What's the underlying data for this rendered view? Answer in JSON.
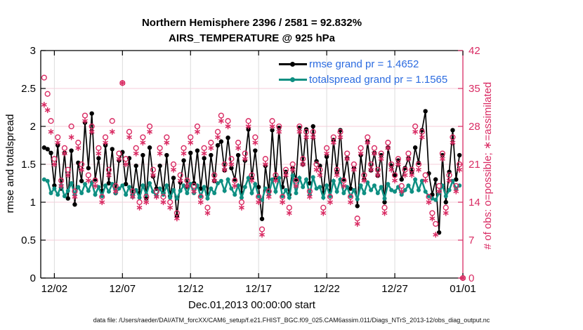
{
  "figure": {
    "title_line1": "Northern Hemisphere 2396 / 2581 = 92.832%",
    "title_line2": "AIRS_TEMPERATURE @ 925 hPa",
    "xlabel": "Dec.01,2013 00:00:00 start",
    "ylabel_left": "rmse and totalspread",
    "ylabel_right": "# of obs: o=possible; ∗=assimilated",
    "caption": "data file: /Users/raeder/DAI/ATM_forcXX/CAM6_setup/f.e21.FHIST_BGC.f09_025.CAM6assim.011/Diags_NTrS_2013-12/obs_diag_output.nc",
    "legend": [
      {
        "label": "rmse grand pr = 1.4652",
        "color": "#000000"
      },
      {
        "label": "totalspread grand pr = 1.1565",
        "color": "#0e8f82"
      }
    ],
    "colors": {
      "pink": "#d92b63",
      "teal": "#0e8f82",
      "black": "#000000",
      "legend_text_blue": "#2b6be0",
      "grid_horizontal": "#f6ccd8",
      "grid_vertical": "#dcdcdc"
    }
  },
  "chart_data": {
    "type": "line",
    "title": "Northern Hemisphere 2396 / 2581 = 92.832% | AIRS_TEMPERATURE @ 925 hPa",
    "x_start": "2013-12-01 00:00:00",
    "x_step_hours": 6,
    "x_range_days": [
      0,
      31
    ],
    "xtick_days": [
      1,
      6,
      11,
      16,
      21,
      26,
      31
    ],
    "xtick_labels": [
      "12/02",
      "12/07",
      "12/12",
      "12/17",
      "12/22",
      "12/27",
      "01/01"
    ],
    "left_axis": {
      "label": "rmse and totalspread",
      "range": [
        0,
        3
      ],
      "tick_values": [
        0,
        0.5,
        1,
        1.5,
        2,
        2.5,
        3
      ],
      "tick_labels": [
        "0",
        "0.5",
        "1",
        "1.5",
        "2",
        "2.5",
        "3"
      ]
    },
    "right_axis": {
      "label": "# of obs: o=possible; ∗=assimilated",
      "range": [
        0,
        42
      ],
      "tick_values": [
        0,
        7,
        14,
        21,
        28,
        35,
        42
      ],
      "tick_labels": [
        "0",
        "7",
        "14",
        "21",
        "28",
        "35",
        "42"
      ]
    },
    "grid": true,
    "legend_position": "top-center",
    "series": [
      {
        "name": "rmse",
        "grand_pr": 1.4652,
        "axis": "left",
        "style": "line-dot",
        "color": "#000000",
        "values": [
          1.72,
          1.7,
          1.65,
          1.22,
          1.75,
          1.18,
          1.65,
          1.05,
          1.68,
          0.97,
          1.52,
          1.28,
          2.05,
          1.45,
          2.17,
          1.3,
          1.58,
          1.15,
          1.75,
          1.25,
          1.7,
          1.12,
          1.55,
          1.66,
          1.24,
          1.58,
          1.1,
          1.48,
          1.12,
          1.62,
          1.05,
          1.72,
          1.34,
          1.18,
          1.48,
          1.12,
          1.62,
          1.08,
          1.32,
          0.82,
          1.26,
          1.55,
          1.2,
          1.65,
          1.25,
          1.68,
          1.18,
          1.58,
          1.1,
          1.62,
          1.28,
          1.75,
          1.8,
          1.42,
          1.85,
          1.45,
          1.3,
          1.62,
          1.12,
          1.55,
          1.96,
          1.32,
          1.68,
          1.2,
          0.78,
          1.48,
          1.14,
          1.95,
          1.32,
          1.98,
          1.2,
          1.4,
          1.1,
          1.45,
          1.3,
          1.98,
          1.5,
          1.96,
          1.25,
          2.0,
          1.54,
          1.48,
          1.12,
          1.6,
          1.15,
          1.82,
          1.4,
          1.95,
          1.3,
          1.58,
          1.18,
          1.45,
          0.95,
          1.62,
          1.3,
          1.8,
          1.42,
          1.65,
          1.35,
          1.62,
          1.0,
          1.72,
          1.48,
          1.35,
          1.55,
          1.3,
          1.45,
          1.58,
          1.4,
          1.72,
          1.52,
          1.95,
          2.2,
          1.38,
          1.1,
          1.3,
          0.6,
          1.62,
          1.0,
          1.4,
          1.95,
          1.3,
          1.62,
          null
        ]
      },
      {
        "name": "totalspread",
        "grand_pr": 1.1565,
        "axis": "left",
        "style": "line-dot",
        "color": "#0e8f82",
        "values": [
          1.3,
          1.28,
          1.12,
          1.18,
          1.1,
          1.22,
          1.08,
          1.15,
          1.25,
          1.1,
          1.2,
          1.12,
          1.24,
          1.15,
          1.26,
          1.1,
          1.2,
          1.08,
          1.22,
          1.14,
          1.24,
          1.12,
          1.18,
          1.22,
          1.1,
          1.2,
          1.07,
          1.16,
          1.06,
          1.22,
          1.1,
          1.25,
          1.14,
          1.08,
          1.18,
          1.1,
          1.22,
          1.06,
          1.16,
          1.05,
          1.15,
          1.22,
          1.12,
          1.24,
          1.12,
          1.22,
          1.08,
          1.2,
          1.05,
          1.18,
          1.12,
          1.25,
          1.28,
          1.15,
          1.3,
          1.18,
          1.1,
          1.22,
          1.06,
          1.2,
          1.32,
          1.12,
          1.24,
          1.08,
          1.03,
          1.18,
          1.1,
          1.3,
          1.14,
          1.32,
          1.08,
          1.16,
          1.06,
          1.35,
          1.12,
          1.32,
          1.2,
          1.3,
          1.1,
          1.33,
          1.18,
          1.2,
          1.06,
          1.22,
          1.08,
          1.28,
          1.14,
          1.3,
          1.12,
          1.2,
          1.08,
          1.16,
          1.04,
          1.22,
          1.12,
          1.26,
          1.16,
          1.22,
          1.12,
          1.2,
          1.05,
          1.24,
          1.16,
          1.14,
          1.2,
          1.1,
          1.16,
          1.22,
          1.14,
          1.3,
          1.16,
          1.28,
          1.14,
          1.08,
          1.05,
          1.03,
          1.12,
          1.22,
          1.08,
          1.16,
          1.28,
          1.18,
          1.22,
          null
        ]
      },
      {
        "name": "possible",
        "axis": "right",
        "style": "scatter",
        "marker": "circle",
        "color": "#d92b63",
        "values": [
          37,
          34,
          29,
          22,
          26,
          18,
          24,
          20,
          28,
          16,
          25,
          21,
          30,
          19,
          28,
          18,
          24,
          15,
          26,
          20,
          29,
          17,
          23,
          36,
          22,
          27,
          16,
          24,
          14,
          26,
          15,
          28,
          20,
          16,
          24,
          15,
          26,
          14,
          21,
          12,
          19,
          24,
          18,
          26,
          17,
          28,
          15,
          24,
          13,
          25,
          19,
          27,
          30,
          21,
          29,
          22,
          18,
          25,
          14,
          23,
          29,
          19,
          26,
          15,
          9,
          22,
          16,
          29,
          19,
          28,
          15,
          20,
          13,
          21,
          18,
          28,
          22,
          27,
          16,
          27,
          21,
          20,
          13,
          24,
          15,
          26,
          20,
          27,
          18,
          23,
          15,
          21,
          11,
          24,
          19,
          26,
          21,
          24,
          20,
          23,
          13,
          25,
          21,
          19,
          22,
          17,
          20,
          23,
          20,
          28,
          21,
          27,
          19,
          15,
          12,
          10,
          17,
          23,
          13,
          19,
          26,
          17,
          21,
          0
        ]
      },
      {
        "name": "assimilated",
        "axis": "right",
        "style": "scatter",
        "marker": "asterisk",
        "color": "#d92b63",
        "values": [
          32,
          31,
          27,
          21,
          25,
          17,
          23,
          19,
          26,
          15,
          24,
          20,
          29,
          18,
          27,
          17,
          23,
          14,
          25,
          19,
          27,
          16,
          22,
          36,
          21,
          26,
          15,
          23,
          13,
          25,
          14,
          27,
          19,
          15,
          23,
          14,
          25,
          13,
          20,
          11,
          18,
          23,
          17,
          25,
          16,
          27,
          14,
          23,
          12,
          24,
          18,
          26,
          29,
          20,
          28,
          21,
          17,
          24,
          13,
          22,
          28,
          18,
          25,
          14,
          8,
          21,
          15,
          28,
          18,
          27,
          14,
          19,
          12,
          20,
          17,
          27,
          21,
          26,
          15,
          26,
          20,
          19,
          12,
          23,
          14,
          25,
          19,
          26,
          17,
          22,
          14,
          20,
          10,
          23,
          18,
          25,
          20,
          23,
          19,
          22,
          12,
          24,
          20,
          18,
          21,
          16,
          19,
          22,
          19,
          27,
          20,
          26,
          18,
          14,
          11,
          8,
          16,
          22,
          12,
          18,
          25,
          16,
          20,
          0
        ]
      }
    ]
  }
}
